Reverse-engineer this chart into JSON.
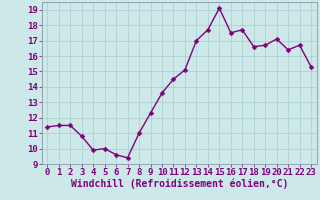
{
  "x": [
    0,
    1,
    2,
    3,
    4,
    5,
    6,
    7,
    8,
    9,
    10,
    11,
    12,
    13,
    14,
    15,
    16,
    17,
    18,
    19,
    20,
    21,
    22,
    23
  ],
  "y": [
    11.4,
    11.5,
    11.5,
    10.8,
    9.9,
    10.0,
    9.6,
    9.4,
    11.0,
    12.3,
    13.6,
    14.5,
    15.1,
    17.0,
    17.7,
    19.1,
    17.5,
    17.7,
    16.6,
    16.7,
    17.1,
    16.4,
    16.7,
    15.3
  ],
  "line_color": "#800080",
  "marker_color": "#800080",
  "bg_color": "#cce8e8",
  "grid_color": "#aacaca",
  "xlabel": "Windchill (Refroidissement éolien,°C)",
  "ylim": [
    9,
    19.5
  ],
  "xlim": [
    -0.5,
    23.5
  ],
  "yticks": [
    9,
    10,
    11,
    12,
    13,
    14,
    15,
    16,
    17,
    18,
    19
  ],
  "xticks": [
    0,
    1,
    2,
    3,
    4,
    5,
    6,
    7,
    8,
    9,
    10,
    11,
    12,
    13,
    14,
    15,
    16,
    17,
    18,
    19,
    20,
    21,
    22,
    23
  ],
  "tick_fontsize": 6.5,
  "xlabel_fontsize": 7,
  "line_width": 1.0,
  "marker_size": 2.5
}
